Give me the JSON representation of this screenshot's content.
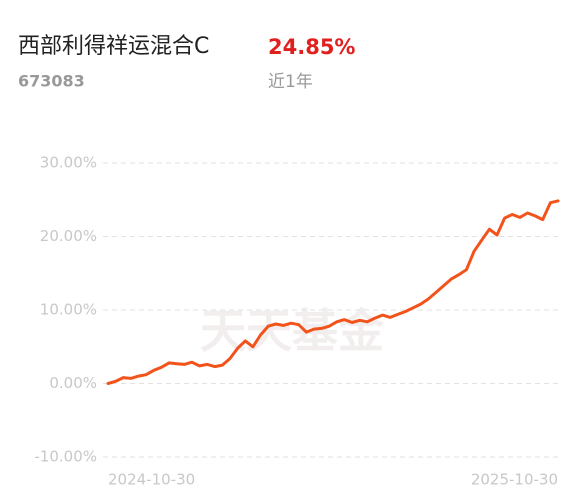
{
  "chart_data": {
    "type": "line",
    "title": "西部利得祥运混合C",
    "return_label": "24.85%",
    "code": "673083",
    "period": "近1年",
    "watermark": "天天基金",
    "color": "#f2531b",
    "categories": [
      "2024-10-30",
      null,
      null,
      null,
      null,
      null,
      null,
      null,
      null,
      null,
      null,
      null,
      null,
      null,
      null,
      null,
      null,
      null,
      null,
      null,
      null,
      null,
      null,
      null,
      null,
      null,
      null,
      null,
      null,
      null,
      null,
      null,
      null,
      null,
      null,
      null,
      null,
      null,
      null,
      null,
      null,
      null,
      null,
      null,
      null,
      null,
      null,
      null,
      null,
      null,
      null,
      null,
      null,
      null,
      null,
      null,
      null,
      null,
      null,
      "2025-10-30"
    ],
    "values": [
      0,
      0.3,
      0.8,
      0.7,
      1.0,
      1.2,
      1.8,
      2.2,
      2.8,
      2.7,
      2.6,
      2.9,
      2.4,
      2.6,
      2.3,
      2.5,
      3.4,
      4.8,
      5.8,
      5.0,
      6.6,
      7.8,
      8.1,
      7.9,
      8.2,
      8.0,
      7.0,
      7.4,
      7.5,
      7.8,
      8.4,
      8.7,
      8.3,
      8.6,
      8.4,
      8.9,
      9.3,
      9.0,
      9.4,
      9.8,
      10.3,
      10.8,
      11.5,
      12.4,
      13.3,
      14.2,
      14.8,
      15.5,
      18.0,
      19.5,
      21.0,
      20.2,
      22.5,
      23.0,
      22.6,
      23.2,
      22.8,
      22.3,
      24.6,
      24.85
    ],
    "ylim": [
      -10,
      30
    ],
    "yticks": [
      {
        "value": -10,
        "label": "-10.00%"
      },
      {
        "value": 0,
        "label": "0.00%"
      },
      {
        "value": 10,
        "label": "10.00%"
      },
      {
        "value": 20,
        "label": "20.00%"
      },
      {
        "value": 30,
        "label": "30.00%"
      }
    ],
    "grid": true
  }
}
